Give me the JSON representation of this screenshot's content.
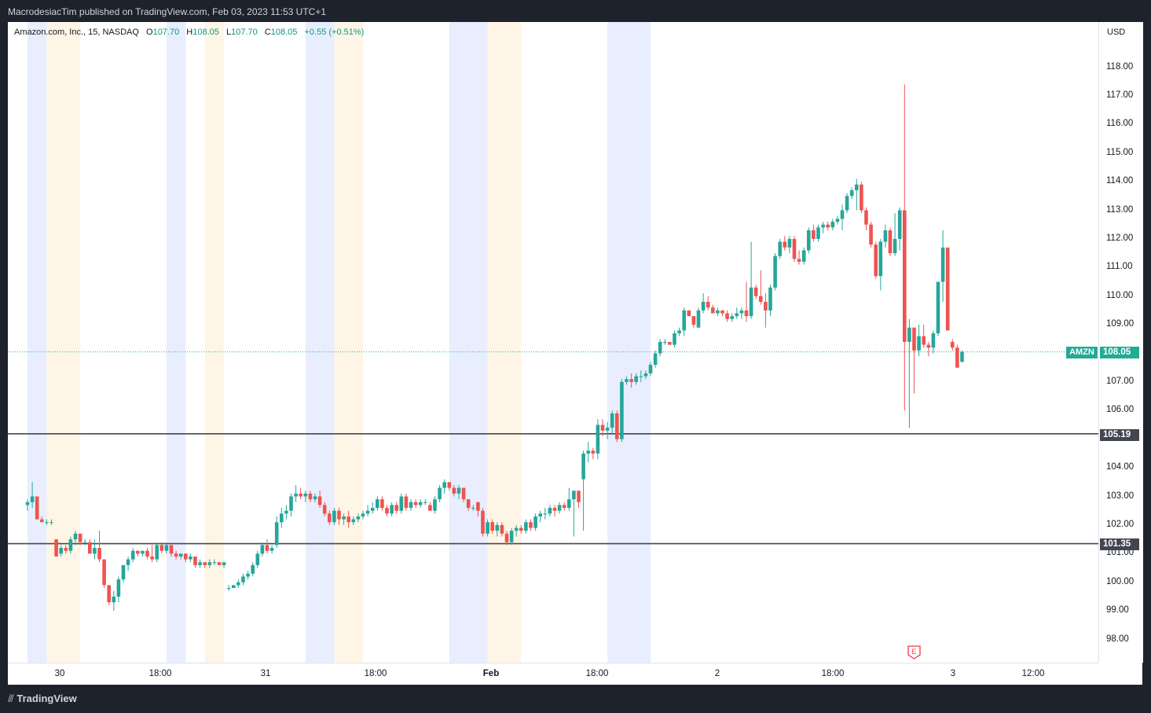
{
  "header": {
    "published": "MacrodesiacTim published on TradingView.com, Feb 03, 2023 11:53 UTC+1"
  },
  "legend": {
    "symbol": "Amazon.com, Inc., 15, NASDAQ",
    "o_label": "O",
    "o_value": "107.70",
    "h_label": "H",
    "h_value": "108.05",
    "l_label": "L",
    "l_value": "107.70",
    "c_label": "C",
    "c_value": "108.05",
    "change": "+0.55 (+0.51%)"
  },
  "price_scale": {
    "currency": "USD",
    "ticks": [
      "118.00",
      "117.00",
      "116.00",
      "115.00",
      "114.00",
      "113.00",
      "112.00",
      "111.00",
      "110.00",
      "109.00",
      "107.00",
      "106.00",
      "104.00",
      "103.00",
      "102.00",
      "101.00",
      "100.00",
      "99.00",
      "98.00"
    ]
  },
  "time_scale": {
    "ticks": [
      "30",
      "18:00",
      "31",
      "18:00",
      "Feb",
      "18:00",
      "2",
      "18:00",
      "3",
      "12:00"
    ]
  },
  "last_price": {
    "symbol": "AMZN",
    "value": "108.05"
  },
  "horizontal_lines": [
    {
      "value": "105.19"
    },
    {
      "value": "101.35"
    }
  ],
  "earnings_marker": {
    "letter": "E"
  },
  "footer": {
    "brand": "TradingView"
  },
  "colors": {
    "up": "#26a69a",
    "down": "#ef5350",
    "premarket": "#e8eefd",
    "afterhours": "#fff5e6",
    "hline": "#434651",
    "last_price": "#22ab94"
  },
  "chart_data": {
    "type": "candlestick",
    "title": "Amazon.com, Inc., 15, NASDAQ",
    "xlabel": "",
    "ylabel": "USD",
    "ylim": [
      97.4,
      119.3
    ],
    "grid": false,
    "sessions": [
      {
        "type": "pre",
        "from": 0,
        "to": 4
      },
      {
        "type": "post",
        "from": 4,
        "to": 11
      },
      {
        "type": "pre",
        "from": 29,
        "to": 33
      },
      {
        "type": "post",
        "from": 37,
        "to": 41
      },
      {
        "type": "pre",
        "from": 58,
        "to": 64
      },
      {
        "type": "post",
        "from": 64,
        "to": 70
      },
      {
        "type": "pre",
        "from": 88,
        "to": 96
      },
      {
        "type": "post",
        "from": 96,
        "to": 103
      },
      {
        "type": "pre",
        "from": 121,
        "to": 130
      }
    ],
    "candles_note": "15-minute OHLC bars, approximate values read from chart",
    "candles": [
      [
        102.7,
        102.9,
        102.5,
        102.8
      ],
      [
        102.8,
        103.5,
        102.6,
        103.0
      ],
      [
        103.0,
        103.0,
        102.2,
        102.2
      ],
      [
        102.2,
        102.3,
        102.1,
        102.1
      ],
      [
        102.1,
        102.2,
        102.0,
        102.1
      ],
      [
        102.1,
        102.2,
        102.0,
        102.1
      ],
      [
        101.5,
        101.5,
        100.9,
        100.9
      ],
      [
        101.0,
        101.3,
        100.9,
        101.2
      ],
      [
        101.2,
        101.3,
        101.0,
        101.1
      ],
      [
        101.1,
        101.6,
        101.0,
        101.5
      ],
      [
        101.5,
        101.8,
        101.3,
        101.7
      ],
      [
        101.7,
        101.7,
        101.3,
        101.4
      ],
      [
        101.4,
        101.5,
        101.3,
        101.4
      ],
      [
        101.4,
        101.5,
        101.0,
        101.0
      ],
      [
        101.0,
        101.5,
        100.8,
        101.2
      ],
      [
        101.2,
        101.8,
        100.7,
        100.8
      ],
      [
        100.8,
        100.8,
        99.8,
        99.9
      ],
      [
        99.9,
        99.9,
        99.2,
        99.3
      ],
      [
        99.3,
        99.7,
        99.0,
        99.5
      ],
      [
        99.5,
        100.2,
        99.3,
        100.1
      ],
      [
        100.1,
        100.6,
        100.0,
        100.6
      ],
      [
        100.6,
        100.9,
        100.4,
        100.8
      ],
      [
        100.8,
        101.2,
        100.7,
        101.1
      ],
      [
        101.1,
        101.1,
        100.9,
        101.0
      ],
      [
        101.0,
        101.1,
        100.9,
        101.1
      ],
      [
        101.1,
        101.2,
        100.8,
        100.9
      ],
      [
        100.9,
        101.3,
        100.7,
        100.8
      ],
      [
        100.8,
        101.4,
        100.7,
        101.3
      ],
      [
        101.3,
        101.4,
        101.0,
        101.1
      ],
      [
        101.1,
        101.4,
        101.0,
        101.3
      ],
      [
        101.3,
        101.3,
        100.9,
        101.0
      ],
      [
        101.0,
        101.1,
        100.8,
        100.9
      ],
      [
        100.9,
        101.0,
        100.8,
        101.0
      ],
      [
        101.0,
        101.0,
        100.7,
        100.8
      ],
      [
        100.8,
        101.0,
        100.7,
        100.9
      ],
      [
        100.9,
        100.9,
        100.5,
        100.6
      ],
      [
        100.6,
        100.8,
        100.5,
        100.7
      ],
      [
        100.7,
        100.7,
        100.5,
        100.6
      ],
      [
        100.6,
        100.8,
        100.5,
        100.7
      ],
      [
        100.7,
        100.8,
        100.6,
        100.7
      ],
      [
        100.7,
        100.7,
        100.6,
        100.6
      ],
      [
        100.6,
        100.7,
        100.5,
        100.7
      ],
      [
        99.8,
        99.9,
        99.7,
        99.8
      ],
      [
        99.8,
        99.9,
        99.8,
        99.9
      ],
      [
        99.9,
        100.1,
        99.8,
        100.0
      ],
      [
        100.0,
        100.3,
        99.9,
        100.2
      ],
      [
        100.2,
        100.4,
        100.1,
        100.3
      ],
      [
        100.3,
        100.7,
        100.2,
        100.6
      ],
      [
        100.6,
        101.1,
        100.5,
        101.0
      ],
      [
        101.0,
        101.4,
        100.9,
        101.3
      ],
      [
        101.3,
        101.5,
        101.0,
        101.1
      ],
      [
        101.1,
        101.3,
        101.0,
        101.2
      ],
      [
        101.3,
        102.3,
        101.2,
        102.1
      ],
      [
        102.1,
        102.6,
        101.9,
        102.4
      ],
      [
        102.4,
        102.7,
        102.2,
        102.5
      ],
      [
        102.5,
        103.1,
        102.3,
        103.0
      ],
      [
        103.0,
        103.4,
        102.8,
        103.1
      ],
      [
        103.1,
        103.3,
        102.9,
        103.0
      ],
      [
        103.0,
        103.2,
        102.8,
        103.1
      ],
      [
        103.1,
        103.2,
        102.8,
        102.9
      ],
      [
        102.9,
        103.1,
        102.8,
        103.0
      ],
      [
        103.0,
        103.2,
        102.6,
        102.7
      ],
      [
        102.7,
        102.8,
        102.3,
        102.4
      ],
      [
        102.4,
        102.5,
        102.0,
        102.1
      ],
      [
        102.1,
        102.6,
        102.0,
        102.5
      ],
      [
        102.5,
        102.6,
        102.0,
        102.2
      ],
      [
        102.2,
        102.4,
        102.0,
        102.3
      ],
      [
        102.3,
        102.5,
        101.9,
        102.1
      ],
      [
        102.1,
        102.3,
        102.0,
        102.2
      ],
      [
        102.2,
        102.4,
        102.1,
        102.3
      ],
      [
        102.3,
        102.5,
        102.2,
        102.4
      ],
      [
        102.4,
        102.7,
        102.3,
        102.5
      ],
      [
        102.5,
        102.8,
        102.4,
        102.6
      ],
      [
        102.6,
        103.0,
        102.5,
        102.9
      ],
      [
        102.9,
        103.0,
        102.5,
        102.6
      ],
      [
        102.6,
        102.7,
        102.3,
        102.4
      ],
      [
        102.4,
        102.8,
        102.3,
        102.7
      ],
      [
        102.7,
        102.8,
        102.4,
        102.5
      ],
      [
        102.5,
        103.1,
        102.4,
        103.0
      ],
      [
        103.0,
        103.1,
        102.5,
        102.6
      ],
      [
        102.6,
        102.9,
        102.5,
        102.8
      ],
      [
        102.8,
        102.9,
        102.6,
        102.7
      ],
      [
        102.7,
        102.9,
        102.6,
        102.8
      ],
      [
        102.8,
        102.9,
        102.7,
        102.8
      ],
      [
        102.7,
        102.8,
        102.5,
        102.5
      ],
      [
        102.5,
        103.0,
        102.4,
        102.9
      ],
      [
        102.9,
        103.4,
        102.8,
        103.3
      ],
      [
        103.3,
        103.6,
        103.1,
        103.5
      ],
      [
        103.5,
        103.5,
        103.2,
        103.3
      ],
      [
        103.3,
        103.4,
        103.0,
        103.1
      ],
      [
        103.1,
        103.4,
        102.9,
        103.3
      ],
      [
        103.3,
        103.3,
        102.8,
        102.9
      ],
      [
        102.9,
        102.9,
        102.5,
        102.6
      ],
      [
        102.6,
        102.7,
        102.5,
        102.6
      ],
      [
        102.8,
        102.8,
        102.3,
        102.5
      ],
      [
        102.5,
        102.6,
        101.6,
        101.7
      ],
      [
        101.7,
        102.2,
        101.6,
        102.1
      ],
      [
        102.1,
        102.2,
        101.7,
        101.8
      ],
      [
        101.8,
        102.1,
        101.6,
        102.0
      ],
      [
        102.0,
        102.1,
        101.6,
        101.7
      ],
      [
        101.7,
        101.8,
        101.3,
        101.4
      ],
      [
        101.4,
        101.9,
        101.3,
        101.8
      ],
      [
        101.8,
        102.0,
        101.6,
        101.9
      ],
      [
        101.9,
        102.0,
        101.7,
        101.8
      ],
      [
        101.8,
        102.2,
        101.7,
        102.1
      ],
      [
        102.1,
        102.2,
        101.8,
        101.9
      ],
      [
        101.9,
        102.4,
        101.8,
        102.3
      ],
      [
        102.3,
        102.5,
        102.1,
        102.4
      ],
      [
        102.4,
        102.6,
        102.2,
        102.4
      ],
      [
        102.4,
        102.7,
        102.3,
        102.6
      ],
      [
        102.6,
        102.7,
        102.3,
        102.5
      ],
      [
        102.5,
        102.8,
        102.4,
        102.7
      ],
      [
        102.7,
        102.8,
        102.5,
        102.6
      ],
      [
        102.6,
        103.3,
        102.5,
        102.9
      ],
      [
        102.9,
        103.2,
        101.6,
        103.2
      ],
      [
        103.2,
        103.2,
        102.6,
        102.8
      ],
      [
        103.6,
        104.6,
        101.8,
        104.5
      ],
      [
        104.5,
        104.9,
        104.2,
        104.6
      ],
      [
        104.6,
        104.7,
        104.3,
        104.5
      ],
      [
        104.5,
        105.7,
        104.3,
        105.5
      ],
      [
        105.5,
        105.7,
        105.1,
        105.3
      ],
      [
        105.3,
        105.6,
        105.0,
        105.4
      ],
      [
        105.4,
        106.0,
        105.2,
        105.9
      ],
      [
        105.9,
        106.0,
        104.9,
        105.0
      ],
      [
        105.0,
        107.1,
        104.9,
        107.0
      ],
      [
        107.0,
        107.2,
        106.9,
        107.1
      ],
      [
        107.1,
        107.3,
        106.8,
        107.0
      ],
      [
        107.0,
        107.3,
        106.9,
        107.2
      ],
      [
        107.2,
        107.4,
        107.0,
        107.2
      ],
      [
        107.2,
        107.4,
        107.1,
        107.3
      ],
      [
        107.3,
        107.7,
        107.2,
        107.6
      ],
      [
        107.6,
        108.1,
        107.5,
        108.0
      ],
      [
        108.0,
        108.5,
        107.9,
        108.4
      ],
      [
        108.4,
        108.5,
        108.3,
        108.4
      ],
      [
        108.4,
        108.4,
        108.3,
        108.3
      ],
      [
        108.3,
        108.8,
        108.2,
        108.7
      ],
      [
        108.7,
        108.9,
        108.6,
        108.8
      ],
      [
        108.8,
        109.6,
        108.6,
        109.5
      ],
      [
        109.5,
        109.5,
        109.3,
        109.3
      ],
      [
        109.3,
        109.3,
        108.9,
        109.0
      ],
      [
        108.9,
        109.6,
        108.9,
        109.5
      ],
      [
        109.5,
        110.1,
        109.4,
        109.8
      ],
      [
        109.8,
        110.0,
        109.5,
        109.6
      ],
      [
        109.6,
        109.7,
        109.4,
        109.4
      ],
      [
        109.4,
        109.6,
        109.3,
        109.5
      ],
      [
        109.5,
        109.5,
        109.3,
        109.4
      ],
      [
        109.4,
        109.5,
        109.1,
        109.2
      ],
      [
        109.2,
        109.4,
        109.1,
        109.3
      ],
      [
        109.3,
        109.6,
        109.2,
        109.4
      ],
      [
        109.4,
        109.6,
        109.2,
        109.5
      ],
      [
        109.5,
        110.5,
        109.1,
        109.3
      ],
      [
        109.3,
        111.9,
        109.2,
        110.3
      ],
      [
        110.3,
        110.4,
        109.9,
        110.0
      ],
      [
        110.0,
        110.9,
        109.7,
        109.8
      ],
      [
        109.8,
        110.1,
        108.9,
        109.5
      ],
      [
        109.5,
        110.4,
        109.3,
        110.3
      ],
      [
        110.3,
        111.5,
        110.2,
        111.4
      ],
      [
        111.4,
        112.0,
        111.3,
        111.9
      ],
      [
        111.9,
        112.1,
        111.6,
        111.7
      ],
      [
        111.7,
        112.1,
        111.5,
        112.0
      ],
      [
        112.0,
        112.1,
        111.2,
        111.3
      ],
      [
        111.3,
        111.6,
        111.1,
        111.2
      ],
      [
        111.2,
        111.7,
        111.1,
        111.6
      ],
      [
        111.6,
        112.4,
        111.5,
        112.3
      ],
      [
        112.3,
        112.5,
        111.9,
        112.0
      ],
      [
        112.0,
        112.5,
        111.9,
        112.4
      ],
      [
        112.4,
        112.6,
        112.2,
        112.5
      ],
      [
        112.5,
        112.6,
        112.3,
        112.4
      ],
      [
        112.4,
        112.7,
        112.3,
        112.6
      ],
      [
        112.6,
        112.8,
        112.5,
        112.7
      ],
      [
        112.7,
        113.2,
        112.3,
        113.0
      ],
      [
        113.0,
        113.6,
        112.9,
        113.5
      ],
      [
        113.5,
        113.8,
        113.4,
        113.7
      ],
      [
        113.7,
        114.1,
        113.0,
        113.9
      ],
      [
        113.9,
        114.0,
        112.9,
        113.0
      ],
      [
        113.0,
        113.1,
        112.3,
        112.5
      ],
      [
        112.5,
        112.6,
        111.7,
        111.8
      ],
      [
        111.8,
        111.9,
        110.6,
        110.7
      ],
      [
        110.7,
        112.0,
        110.2,
        111.9
      ],
      [
        111.9,
        112.5,
        111.7,
        112.3
      ],
      [
        112.3,
        112.4,
        111.4,
        111.5
      ],
      [
        111.5,
        112.9,
        111.4,
        112.0
      ],
      [
        112.0,
        113.1,
        111.6,
        113.0
      ],
      [
        113.0,
        117.4,
        106.0,
        108.4
      ],
      [
        108.4,
        109.2,
        105.4,
        108.9
      ],
      [
        108.9,
        108.9,
        106.6,
        108.1
      ],
      [
        108.1,
        109.0,
        107.9,
        108.6
      ],
      [
        108.6,
        109.0,
        108.2,
        108.3
      ],
      [
        108.3,
        108.4,
        107.9,
        108.2
      ],
      [
        108.2,
        108.8,
        108.0,
        108.7
      ],
      [
        108.7,
        110.5,
        108.6,
        110.5
      ],
      [
        110.5,
        112.3,
        109.8,
        111.7
      ],
      [
        111.7,
        111.6,
        108.8,
        108.8
      ],
      [
        108.4,
        108.5,
        108.1,
        108.2
      ],
      [
        108.2,
        108.3,
        107.5,
        107.5
      ],
      [
        107.7,
        108.1,
        107.7,
        108.05
      ]
    ]
  }
}
